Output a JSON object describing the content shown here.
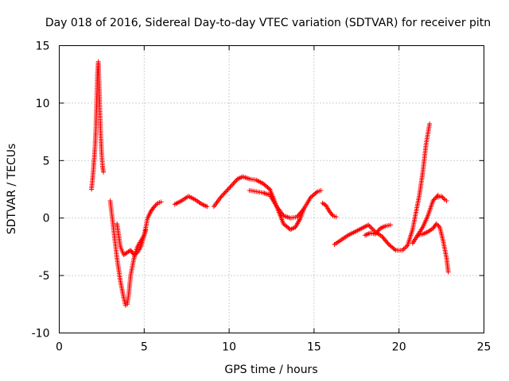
{
  "chart_data": {
    "type": "scatter",
    "title": "Day 018 of 2016, Sidereal Day-to-day VTEC variation (SDTVAR) for receiver pitn",
    "xlabel": "GPS time / hours",
    "ylabel": "SDTVAR / TECUs",
    "xlim": [
      0,
      25
    ],
    "ylim": [
      -10,
      15
    ],
    "xticks": [
      0,
      5,
      10,
      15,
      20,
      25
    ],
    "yticks": [
      -10,
      -5,
      0,
      5,
      10,
      15
    ],
    "xtick_labels": [
      "0",
      "5",
      "10",
      "15",
      "20",
      "25"
    ],
    "ytick_labels": [
      "-10",
      "-5",
      "0",
      "5",
      "10",
      "15"
    ],
    "grid": true,
    "marker": "+",
    "color": "#ff0000",
    "series": [
      {
        "name": "s1",
        "x": [
          1.9,
          2.0,
          2.1,
          2.15,
          2.2,
          2.25,
          2.3,
          2.35,
          2.4,
          2.45,
          2.5,
          2.55,
          2.6
        ],
        "y": [
          2.5,
          4.0,
          6.0,
          7.5,
          10.0,
          12.5,
          13.6,
          11.5,
          9.0,
          7.0,
          5.5,
          4.5,
          4.0
        ]
      },
      {
        "name": "s2",
        "x": [
          3.0,
          3.2,
          3.4,
          3.6,
          3.8,
          3.9,
          4.0,
          4.1,
          4.2,
          4.4,
          4.6,
          4.8,
          5.0,
          5.2,
          5.4,
          5.6,
          5.8,
          6.0
        ],
        "y": [
          1.5,
          -1.0,
          -3.5,
          -5.5,
          -7.0,
          -7.6,
          -7.5,
          -6.5,
          -5.0,
          -3.5,
          -2.5,
          -2.0,
          -1.5,
          0.0,
          0.6,
          1.0,
          1.3,
          1.4
        ]
      },
      {
        "name": "s3",
        "x": [
          3.4,
          3.6,
          3.8,
          4.0,
          4.2,
          4.4,
          4.6,
          4.8,
          5.0,
          5.1
        ],
        "y": [
          -0.5,
          -2.5,
          -3.2,
          -3.0,
          -2.8,
          -3.2,
          -3.0,
          -2.5,
          -1.5,
          -1.0
        ]
      },
      {
        "name": "s4",
        "x": [
          6.8,
          7.2,
          7.6,
          8.0,
          8.4,
          8.7
        ],
        "y": [
          1.2,
          1.5,
          1.9,
          1.6,
          1.2,
          1.0
        ]
      },
      {
        "name": "s5",
        "x": [
          9.1,
          9.5,
          10.0,
          10.5,
          10.8,
          11.2,
          11.6,
          12.0,
          12.4,
          12.8,
          13.2,
          13.6,
          13.9,
          14.2,
          14.4
        ],
        "y": [
          1.0,
          1.8,
          2.6,
          3.4,
          3.6,
          3.4,
          3.3,
          3.0,
          2.5,
          1.0,
          -0.5,
          -1.0,
          -0.8,
          0.0,
          0.8
        ]
      },
      {
        "name": "s6",
        "x": [
          11.2,
          11.6,
          12.0,
          12.4,
          12.8,
          13.2,
          13.6,
          14.0,
          14.4,
          14.8,
          15.2,
          15.4
        ],
        "y": [
          2.4,
          2.3,
          2.2,
          2.0,
          1.0,
          0.2,
          0.0,
          0.1,
          0.8,
          1.8,
          2.3,
          2.4
        ]
      },
      {
        "name": "s7",
        "x": [
          15.5,
          15.7,
          15.9,
          16.1,
          16.3
        ],
        "y": [
          1.3,
          1.1,
          0.6,
          0.2,
          0.1
        ]
      },
      {
        "name": "s8",
        "x": [
          16.2,
          16.6,
          17.0,
          17.4,
          17.8,
          18.2,
          18.6,
          19.0,
          19.4,
          19.8,
          20.2,
          20.5,
          20.8,
          21.0,
          21.2,
          21.4,
          21.6,
          21.8
        ],
        "y": [
          -2.3,
          -1.9,
          -1.5,
          -1.2,
          -0.9,
          -0.6,
          -1.2,
          -1.6,
          -2.3,
          -2.8,
          -2.8,
          -2.4,
          -1.0,
          0.5,
          2.0,
          4.0,
          6.5,
          8.2
        ]
      },
      {
        "name": "s9",
        "x": [
          18.0,
          18.3,
          18.6,
          18.9,
          19.2,
          19.5
        ],
        "y": [
          -1.5,
          -1.3,
          -1.4,
          -0.9,
          -0.7,
          -0.6
        ]
      },
      {
        "name": "s10",
        "x": [
          20.8,
          21.1,
          21.4,
          21.7,
          22.0,
          22.3
        ],
        "y": [
          -2.2,
          -1.5,
          -0.8,
          0.2,
          1.5,
          2.0
        ]
      },
      {
        "name": "s11",
        "x": [
          21.1,
          21.4,
          21.7,
          22.0,
          22.2,
          22.4,
          22.6,
          22.8,
          22.9
        ],
        "y": [
          -1.5,
          -1.4,
          -1.2,
          -0.9,
          -0.5,
          -0.8,
          -2.0,
          -3.5,
          -4.7
        ]
      },
      {
        "name": "s12",
        "x": [
          22.3,
          22.5,
          22.7,
          22.8
        ],
        "y": [
          1.8,
          1.9,
          1.6,
          1.5
        ]
      }
    ]
  }
}
